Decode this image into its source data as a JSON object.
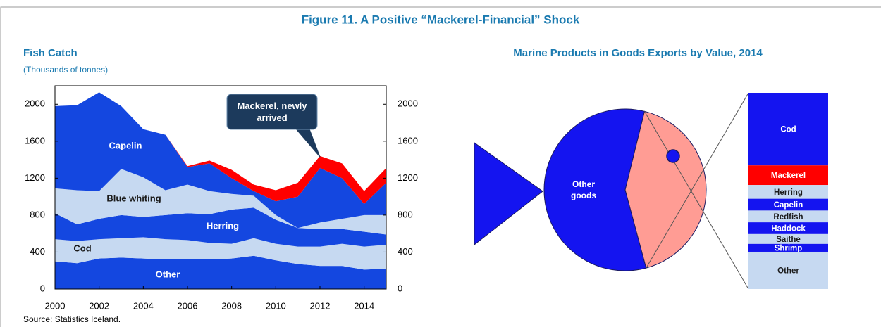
{
  "title": "Figure 11. A Positive “Mackerel-Financial” Shock",
  "source": "Source: Statistics Iceland.",
  "chart_data": [
    {
      "type": "area",
      "stacked": true,
      "title": "Fish Catch",
      "subtitle": "(Thousands of tonnes)",
      "x": [
        2000,
        2001,
        2002,
        2003,
        2004,
        2005,
        2006,
        2007,
        2008,
        2009,
        2010,
        2011,
        2012,
        2013,
        2014,
        2015
      ],
      "series": [
        {
          "name": "Other",
          "color": "#1447e0",
          "values": [
            300,
            280,
            330,
            340,
            330,
            320,
            320,
            320,
            330,
            360,
            310,
            270,
            250,
            250,
            210,
            220
          ]
        },
        {
          "name": "Cod",
          "color": "#c6d9f1",
          "values": [
            240,
            240,
            210,
            210,
            230,
            220,
            210,
            180,
            160,
            190,
            180,
            190,
            210,
            240,
            250,
            260
          ]
        },
        {
          "name": "Herring",
          "color": "#1447e0",
          "values": [
            280,
            180,
            220,
            250,
            220,
            260,
            290,
            310,
            370,
            330,
            260,
            200,
            190,
            160,
            160,
            110
          ]
        },
        {
          "name": "Blue whiting",
          "color": "#c6d9f1",
          "values": [
            270,
            370,
            300,
            500,
            430,
            270,
            310,
            250,
            170,
            130,
            50,
            0,
            70,
            110,
            180,
            210
          ]
        },
        {
          "name": "Capelin",
          "color": "#1447e0",
          "values": [
            890,
            920,
            1070,
            680,
            520,
            600,
            190,
            300,
            170,
            50,
            150,
            340,
            590,
            440,
            120,
            350
          ]
        },
        {
          "name": "Mackerel",
          "color": "#ff0000",
          "values": [
            0,
            0,
            0,
            0,
            0,
            0,
            10,
            30,
            90,
            70,
            120,
            150,
            130,
            160,
            140,
            160
          ]
        }
      ],
      "annotation": {
        "text": "Mackerel, newly arrived",
        "x": 2012,
        "y": 1430
      },
      "xlim": [
        2000,
        2015
      ],
      "xticks": [
        2000,
        2002,
        2004,
        2006,
        2008,
        2010,
        2012,
        2014
      ],
      "ylim": [
        0,
        2200
      ],
      "yticks": [
        0,
        400,
        800,
        1200,
        1600,
        2000
      ],
      "y2lim": [
        0,
        2200
      ],
      "y2ticks": [
        0,
        400,
        800,
        1200,
        1600,
        2000
      ]
    },
    {
      "type": "pie",
      "title": "Marine Products in Goods Exports by Value, 2014",
      "categories": [
        "Other goods",
        null
      ],
      "values": [
        58,
        42
      ],
      "colors": [
        "#1414f0",
        "#ff9c94"
      ]
    },
    {
      "type": "stacked",
      "series": [
        {
          "name": "Cod",
          "color": "#1414f0",
          "values": [
            37
          ]
        },
        {
          "name": "Mackerel",
          "color": "#ff0000",
          "values": [
            10
          ]
        },
        {
          "name": "Herring",
          "color": "#c6d9f1",
          "values": [
            7
          ]
        },
        {
          "name": "Capelin",
          "color": "#1414f0",
          "values": [
            6
          ]
        },
        {
          "name": "Redfish",
          "color": "#c6d9f1",
          "values": [
            6
          ]
        },
        {
          "name": "Haddock",
          "color": "#1414f0",
          "values": [
            6
          ]
        },
        {
          "name": "Saithe",
          "color": "#c6d9f1",
          "values": [
            5
          ]
        },
        {
          "name": "Shrimp",
          "color": "#1414f0",
          "values": [
            4
          ]
        },
        {
          "name": "Other",
          "color": "#c6d9f1",
          "values": [
            19
          ]
        }
      ]
    }
  ]
}
